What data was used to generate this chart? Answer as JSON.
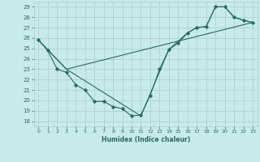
{
  "xlabel": "Humidex (Indice chaleur)",
  "bg_color": "#c8eaea",
  "grid_color": "#a8cccc",
  "line_color": "#2a6a60",
  "xlim": [
    -0.5,
    23.5
  ],
  "ylim": [
    17.5,
    29.5
  ],
  "xticks": [
    0,
    1,
    2,
    3,
    4,
    5,
    6,
    7,
    8,
    9,
    10,
    11,
    12,
    13,
    14,
    15,
    16,
    17,
    18,
    19,
    20,
    21,
    22,
    23
  ],
  "yticks": [
    18,
    19,
    20,
    21,
    22,
    23,
    24,
    25,
    26,
    27,
    28,
    29
  ],
  "line1_x": [
    0,
    1,
    2,
    3,
    4,
    5,
    6,
    7,
    8,
    9,
    10,
    11,
    12,
    13,
    14,
    15,
    16,
    17,
    18,
    19,
    20,
    21,
    22,
    23
  ],
  "line1_y": [
    25.8,
    24.8,
    23.0,
    22.7,
    21.5,
    21.0,
    19.9,
    19.9,
    19.4,
    19.2,
    18.5,
    18.6,
    20.5,
    23.0,
    24.9,
    25.5,
    26.5,
    27.0,
    27.1,
    29.0,
    29.0,
    28.0,
    27.7,
    27.5
  ],
  "line2_x": [
    0,
    3,
    23
  ],
  "line2_y": [
    25.8,
    23.0,
    27.5
  ],
  "line3_x": [
    0,
    3,
    11,
    14,
    16,
    17,
    18,
    19,
    20,
    21,
    22,
    23
  ],
  "line3_y": [
    25.8,
    23.0,
    18.5,
    24.9,
    26.5,
    27.0,
    27.1,
    29.0,
    29.0,
    28.0,
    27.7,
    27.5
  ]
}
